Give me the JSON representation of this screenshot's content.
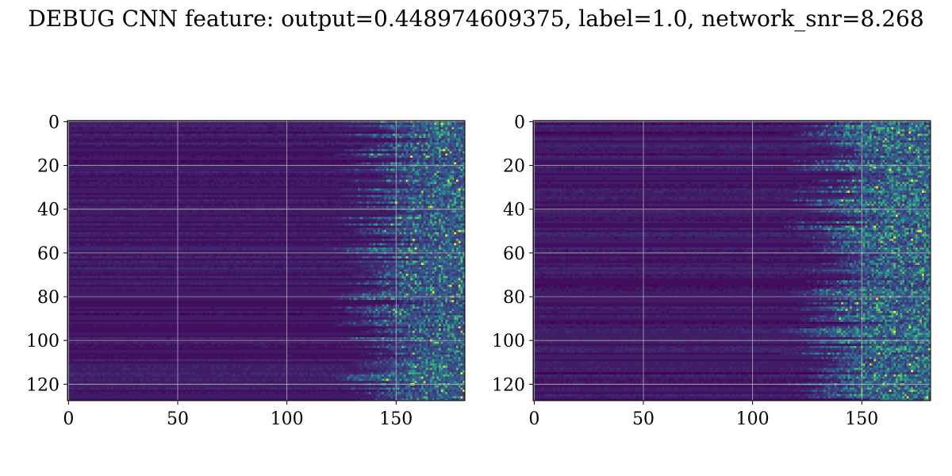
{
  "title": "DEBUG CNN feature: output=0.448974609375, label=1.0, network_snr=8.268",
  "colormap": [
    "#440154",
    "#3b528b",
    "#21918c",
    "#5ec962",
    "#fde725"
  ],
  "chart_data": [
    {
      "type": "heatmap",
      "title": "",
      "xlabel": "",
      "ylabel": "",
      "xlim": [
        -0.5,
        181.5
      ],
      "ylim": [
        127.5,
        -0.5
      ],
      "grid": true,
      "xticks": [
        0,
        50,
        100,
        150
      ],
      "yticks": [
        0,
        20,
        40,
        60,
        80,
        100,
        120
      ],
      "xtick_labels": [
        "0",
        "50",
        "100",
        "150"
      ],
      "ytick_labels": [
        "0",
        "20",
        "40",
        "60",
        "80",
        "100",
        "120"
      ],
      "rows": 128,
      "cols": 182,
      "onset_column_range": [
        118,
        150
      ],
      "peak_column_range": [
        145,
        182
      ]
    },
    {
      "type": "heatmap",
      "title": "",
      "xlabel": "",
      "ylabel": "",
      "xlim": [
        -0.5,
        181.5
      ],
      "ylim": [
        127.5,
        -0.5
      ],
      "grid": true,
      "xticks": [
        0,
        50,
        100,
        150
      ],
      "yticks": [
        0,
        20,
        40,
        60,
        80,
        100,
        120
      ],
      "xtick_labels": [
        "0",
        "50",
        "100",
        "150"
      ],
      "ytick_labels": [
        "0",
        "20",
        "40",
        "60",
        "80",
        "100",
        "120"
      ],
      "rows": 128,
      "cols": 182,
      "onset_column_range": [
        110,
        145
      ],
      "peak_column_range": [
        140,
        182
      ]
    }
  ]
}
